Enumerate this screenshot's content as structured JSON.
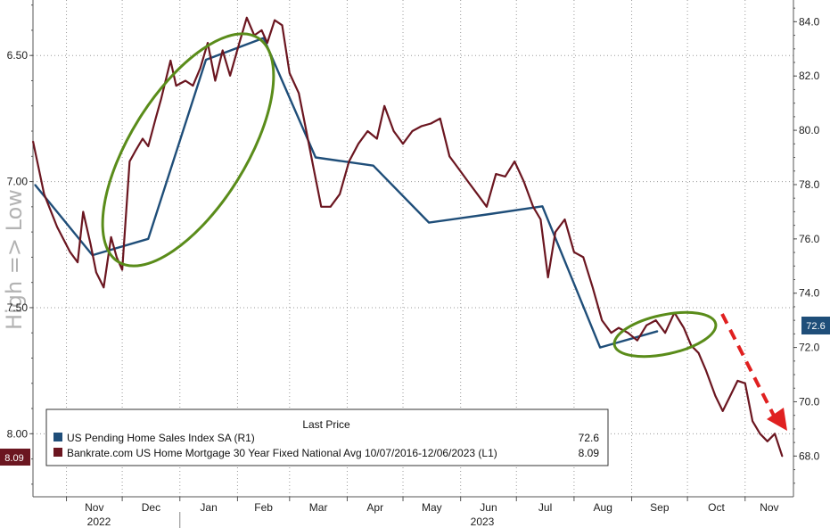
{
  "chart_data": {
    "type": "line",
    "watermark": "High => Low",
    "x_labels": [
      "Nov",
      "Dec",
      "Jan",
      "Feb",
      "Mar",
      "Apr",
      "May",
      "Jun",
      "Jul",
      "Aug",
      "Sep",
      "Oct",
      "Nov"
    ],
    "year_labels": [
      "2022",
      "2023"
    ],
    "left_axis": {
      "ticks": [
        "6.50",
        "7.00",
        "7.50",
        "8.00"
      ],
      "inverted": true,
      "ylim": [
        6.28,
        8.25
      ]
    },
    "right_axis": {
      "ticks": [
        "68.0",
        "70.0",
        "72.0",
        "74.0",
        "76.0",
        "78.0",
        "80.0",
        "82.0",
        "84.0"
      ],
      "ylim": [
        66.5,
        84.8
      ]
    },
    "grid": true,
    "legend": {
      "title": "Last Price",
      "placement": "bottom-left",
      "entries": [
        {
          "label": "US Pending Home Sales Index SA  (R1)",
          "value": "72.6",
          "color": "#1f4e79"
        },
        {
          "label": "Bankrate.com US Home Mortgage 30 Year Fixed National Avg 10/07/2016-12/06/2023   (L1)",
          "value": "8.09",
          "color": "#6b1620"
        }
      ]
    },
    "last_value_badges": {
      "left": "8.09",
      "right": "72.6"
    },
    "series": [
      {
        "name": "US Pending Home Sales Index SA",
        "axis": "right",
        "color": "#1f4e79",
        "x": [
          "2022-10-15",
          "2022-11-15",
          "2022-12-15",
          "2023-01-15",
          "2023-02-15",
          "2023-03-15",
          "2023-04-15",
          "2023-05-15",
          "2023-06-15",
          "2023-07-15",
          "2023-08-15",
          "2023-09-15"
        ],
        "values": [
          78.0,
          75.4,
          76.0,
          82.6,
          83.4,
          79.0,
          78.7,
          76.6,
          76.9,
          77.2,
          72.0,
          72.6
        ]
      },
      {
        "name": "Bankrate.com US Home Mortgage 30 Year Fixed National Avg",
        "axis": "left",
        "color": "#6b1620",
        "x": [
          "2022-10-14",
          "2022-10-20",
          "2022-10-27",
          "2022-11-03",
          "2022-11-07",
          "2022-11-10",
          "2022-11-14",
          "2022-11-17",
          "2022-11-21",
          "2022-11-25",
          "2022-11-28",
          "2022-12-01",
          "2022-12-05",
          "2022-12-08",
          "2022-12-12",
          "2022-12-15",
          "2022-12-19",
          "2022-12-22",
          "2022-12-27",
          "2022-12-30",
          "2023-01-04",
          "2023-01-08",
          "2023-01-12",
          "2023-01-16",
          "2023-01-20",
          "2023-01-24",
          "2023-01-28",
          "2023-02-02",
          "2023-02-06",
          "2023-02-10",
          "2023-02-14",
          "2023-02-17",
          "2023-02-21",
          "2023-02-25",
          "2023-03-01",
          "2023-03-06",
          "2023-03-10",
          "2023-03-14",
          "2023-03-18",
          "2023-03-23",
          "2023-03-28",
          "2023-04-02",
          "2023-04-07",
          "2023-04-12",
          "2023-04-17",
          "2023-04-21",
          "2023-04-26",
          "2023-05-01",
          "2023-05-06",
          "2023-05-11",
          "2023-05-16",
          "2023-05-21",
          "2023-05-26",
          "2023-05-31",
          "2023-06-05",
          "2023-06-10",
          "2023-06-15",
          "2023-06-20",
          "2023-06-25",
          "2023-06-30",
          "2023-07-05",
          "2023-07-10",
          "2023-07-14",
          "2023-07-18",
          "2023-07-22",
          "2023-07-27",
          "2023-08-01",
          "2023-08-06",
          "2023-08-11",
          "2023-08-16",
          "2023-08-21",
          "2023-08-25",
          "2023-08-30",
          "2023-09-04",
          "2023-09-09",
          "2023-09-14",
          "2023-09-19",
          "2023-09-24",
          "2023-09-29",
          "2023-10-03",
          "2023-10-07",
          "2023-10-11",
          "2023-10-16",
          "2023-10-20",
          "2023-10-24",
          "2023-10-28",
          "2023-11-01",
          "2023-11-05",
          "2023-11-09",
          "2023-11-13",
          "2023-11-17",
          "2023-11-21"
        ],
        "values": [
          6.84,
          7.05,
          7.18,
          7.28,
          7.32,
          7.12,
          7.25,
          7.36,
          7.42,
          7.22,
          7.3,
          7.35,
          6.92,
          6.88,
          6.83,
          6.86,
          6.75,
          6.67,
          6.52,
          6.62,
          6.6,
          6.62,
          6.55,
          6.45,
          6.6,
          6.48,
          6.58,
          6.45,
          6.35,
          6.42,
          6.4,
          6.45,
          6.36,
          6.38,
          6.57,
          6.65,
          6.8,
          6.95,
          7.1,
          7.1,
          7.05,
          6.92,
          6.85,
          6.8,
          6.83,
          6.7,
          6.8,
          6.85,
          6.8,
          6.78,
          6.77,
          6.75,
          6.9,
          6.95,
          7.0,
          7.05,
          7.1,
          6.97,
          6.98,
          6.92,
          7.0,
          7.1,
          7.15,
          7.38,
          7.2,
          7.15,
          7.28,
          7.3,
          7.42,
          7.55,
          7.6,
          7.58,
          7.6,
          7.63,
          7.57,
          7.55,
          7.6,
          7.52,
          7.58,
          7.65,
          7.68,
          7.75,
          7.85,
          7.91,
          7.85,
          7.79,
          7.8,
          7.95,
          8.0,
          8.03,
          8.0,
          8.09
        ]
      }
    ],
    "annotations": [
      {
        "type": "ellipse",
        "color": "#5a8c1a",
        "around": "Dec 2022 - Feb 2023"
      },
      {
        "type": "ellipse",
        "color": "#5a8c1a",
        "around": "Aug - Sep 2023"
      },
      {
        "type": "arrow",
        "color": "#e02020",
        "style": "dashed",
        "direction": "down",
        "around": "Oct - Nov 2023"
      }
    ]
  }
}
